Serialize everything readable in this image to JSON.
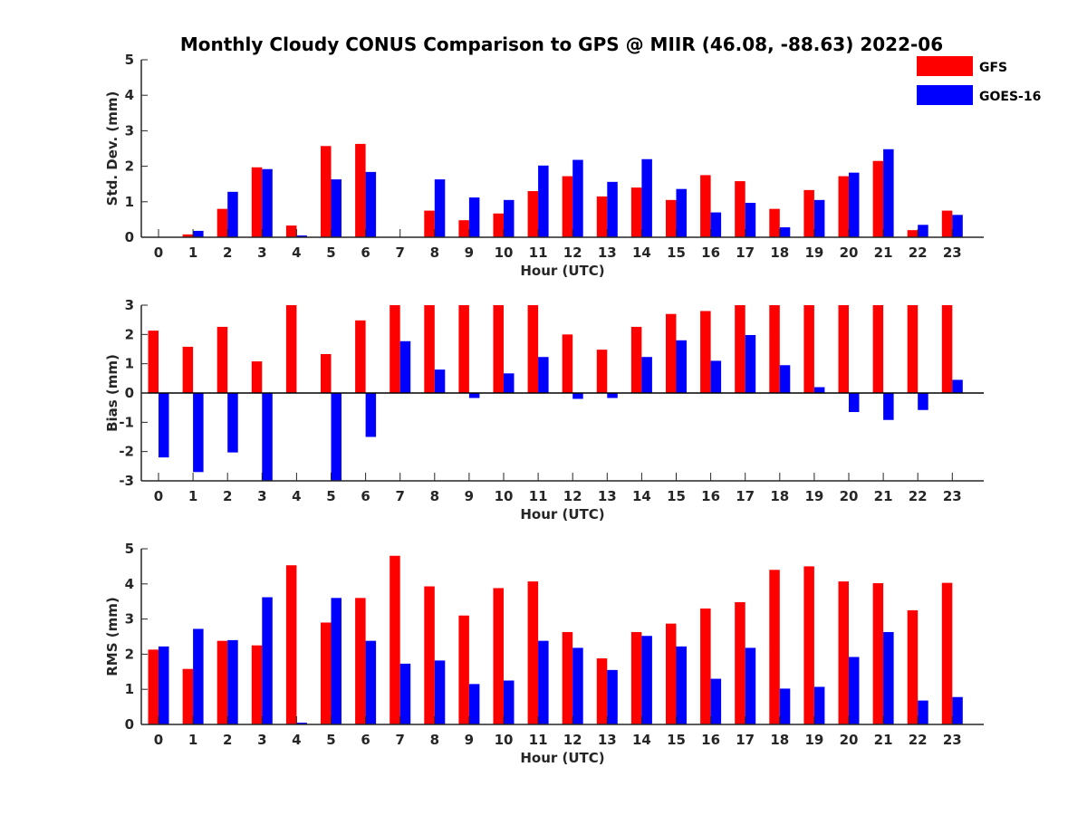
{
  "title": "Monthly Cloudy CONUS Comparison to GPS @ MIIR (46.08, -88.63) 2022-06",
  "legend": {
    "placement": "top-right",
    "items": [
      {
        "name": "GFS",
        "color": "#ff0000"
      },
      {
        "name": "GOES-16",
        "color": "#0000ff"
      }
    ]
  },
  "chart_data": [
    {
      "type": "bar",
      "xlabel": "Hour (UTC)",
      "ylabel": "Std. Dev. (mm)",
      "ylim": [
        0,
        5
      ],
      "yticks": [
        0,
        1,
        2,
        3,
        4,
        5
      ],
      "categories": [
        "0",
        "1",
        "2",
        "3",
        "4",
        "5",
        "6",
        "7",
        "8",
        "9",
        "10",
        "11",
        "12",
        "13",
        "14",
        "15",
        "16",
        "17",
        "18",
        "19",
        "20",
        "21",
        "22",
        "23"
      ],
      "series": [
        {
          "name": "GFS",
          "color": "#ff0000",
          "values": [
            0,
            0.08,
            0.8,
            1.97,
            0.33,
            2.57,
            2.63,
            0,
            0.75,
            0.48,
            0.67,
            1.3,
            1.72,
            1.15,
            1.4,
            1.05,
            1.75,
            1.58,
            0.8,
            1.33,
            1.72,
            2.15,
            0.2,
            0.75
          ]
        },
        {
          "name": "GOES-16",
          "color": "#0000ff",
          "values": [
            0,
            0.18,
            1.28,
            1.92,
            0.05,
            1.63,
            1.84,
            0,
            1.63,
            1.12,
            1.05,
            2.02,
            2.18,
            1.56,
            2.2,
            1.36,
            0.7,
            0.97,
            0.28,
            1.05,
            1.82,
            2.48,
            0.35,
            0.63
          ]
        }
      ]
    },
    {
      "type": "bar",
      "xlabel": "Hour (UTC)",
      "ylabel": "Bias (mm)",
      "ylim": [
        -3,
        3
      ],
      "yticks": [
        -3,
        -2,
        -1,
        0,
        1,
        2,
        3
      ],
      "categories": [
        "0",
        "1",
        "2",
        "3",
        "4",
        "5",
        "6",
        "7",
        "8",
        "9",
        "10",
        "11",
        "12",
        "13",
        "14",
        "15",
        "16",
        "17",
        "18",
        "19",
        "20",
        "21",
        "22",
        "23"
      ],
      "series": [
        {
          "name": "GFS",
          "color": "#ff0000",
          "values": [
            2.13,
            1.58,
            2.26,
            1.08,
            3.0,
            1.33,
            2.48,
            3.0,
            3.0,
            3.0,
            3.0,
            3.0,
            2.0,
            1.48,
            2.26,
            2.7,
            2.8,
            3.0,
            3.0,
            3.0,
            3.0,
            3.0,
            3.0,
            3.0
          ]
        },
        {
          "name": "GOES-16",
          "color": "#0000ff",
          "values": [
            -2.2,
            -2.7,
            -2.03,
            -3.0,
            0,
            -3.0,
            -1.5,
            1.77,
            0.8,
            -0.17,
            0.67,
            1.23,
            -0.2,
            -0.17,
            1.23,
            1.8,
            1.1,
            1.98,
            0.95,
            0.2,
            -0.65,
            -0.92,
            -0.58,
            0.45
          ]
        }
      ]
    },
    {
      "type": "bar",
      "xlabel": "Hour (UTC)",
      "ylabel": "RMS (mm)",
      "ylim": [
        0,
        5
      ],
      "yticks": [
        0,
        1,
        2,
        3,
        4,
        5
      ],
      "categories": [
        "0",
        "1",
        "2",
        "3",
        "4",
        "5",
        "6",
        "7",
        "8",
        "9",
        "10",
        "11",
        "12",
        "13",
        "14",
        "15",
        "16",
        "17",
        "18",
        "19",
        "20",
        "21",
        "22",
        "23"
      ],
      "series": [
        {
          "name": "GFS",
          "color": "#ff0000",
          "values": [
            2.13,
            1.58,
            2.38,
            2.25,
            4.53,
            2.9,
            3.6,
            4.8,
            3.93,
            3.1,
            3.88,
            4.07,
            2.63,
            1.88,
            2.63,
            2.87,
            3.3,
            3.48,
            4.4,
            4.5,
            4.07,
            4.02,
            3.25,
            4.03
          ]
        },
        {
          "name": "GOES-16",
          "color": "#0000ff",
          "values": [
            2.22,
            2.72,
            2.4,
            3.62,
            0.05,
            3.6,
            2.38,
            1.73,
            1.82,
            1.15,
            1.25,
            2.38,
            2.18,
            1.55,
            2.52,
            2.22,
            1.3,
            2.18,
            1.02,
            1.07,
            1.92,
            2.63,
            0.68,
            0.78
          ]
        }
      ]
    }
  ]
}
